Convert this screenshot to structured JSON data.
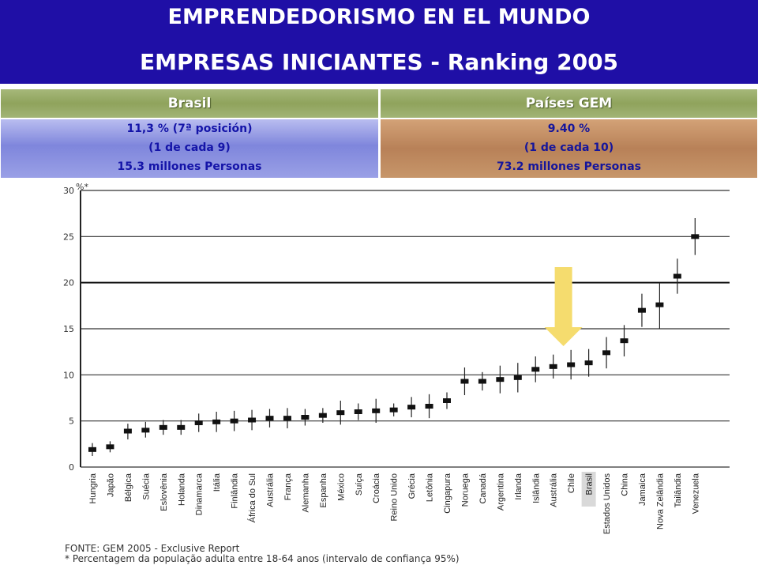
{
  "header": {
    "title_line1": "EMPRENDEDORISMO EN EL MUNDO",
    "title_line2": "EMPRESAS INICIANTES - Ranking 2005"
  },
  "table": {
    "col1_header": "Brasil",
    "col2_header": "Países GEM",
    "col1_lines": [
      "11,3 % (7ª posición)",
      "(1 de cada 9)",
      "15.3 millones Personas"
    ],
    "col2_lines": [
      "9.40 %",
      "(1 de cada 10)",
      "73.2 millones Personas"
    ]
  },
  "source": {
    "line1": "FONTE: GEM 2005 - Exclusive Report",
    "line2": "* Percentagem da população adulta entre 18-64 anos (intervalo de confiança 95%)"
  },
  "colors": {
    "header_bg": "#1f0fa6",
    "arrow": "#f5dc6e",
    "mark": "#111111"
  },
  "chart_data": {
    "type": "error-bar",
    "ylabel": "%*",
    "ylim": [
      0,
      30
    ],
    "yticks": [
      0,
      5,
      10,
      15,
      20,
      25,
      30
    ],
    "highlight": "Brasil",
    "categories": [
      "Hungria",
      "Japão",
      "Bélgica",
      "Suécia",
      "Eslovênia",
      "Holanda",
      "Dinamarca",
      "Itália",
      "Finlândia",
      "África do Sul",
      "Austrália",
      "França",
      "Alemanha",
      "Espanha",
      "México",
      "Suíça",
      "Croácia",
      "Reino Unido",
      "Grécia",
      "Letônia",
      "Cingapura",
      "Noruega",
      "Canadá",
      "Argentina",
      "Irlanda",
      "Islândia",
      "Austrália",
      "Chile",
      "Brasil",
      "Estados Unidos",
      "China",
      "Jamaica",
      "Nova Zelândia",
      "Tailândia",
      "Venezuela"
    ],
    "values": [
      1.9,
      2.2,
      3.9,
      4.0,
      4.3,
      4.3,
      4.8,
      4.9,
      5.0,
      5.1,
      5.3,
      5.3,
      5.4,
      5.6,
      5.9,
      6.0,
      6.1,
      6.2,
      6.5,
      6.6,
      7.2,
      9.3,
      9.3,
      9.5,
      9.7,
      10.6,
      10.9,
      11.1,
      11.3,
      12.4,
      13.7,
      17.0,
      17.6,
      20.7,
      25.0
    ],
    "ci_low": [
      1.2,
      1.6,
      3.0,
      3.2,
      3.5,
      3.5,
      3.8,
      3.8,
      3.9,
      4.0,
      4.3,
      4.2,
      4.5,
      4.8,
      4.6,
      5.1,
      4.8,
      5.5,
      5.4,
      5.3,
      6.3,
      7.8,
      8.3,
      8.0,
      8.1,
      9.2,
      9.6,
      9.5,
      9.8,
      10.7,
      12.0,
      15.2,
      15.0,
      18.8,
      23.0
    ],
    "ci_high": [
      2.6,
      2.8,
      4.7,
      4.9,
      5.1,
      5.1,
      5.8,
      6.0,
      6.1,
      6.2,
      6.3,
      6.4,
      6.3,
      6.4,
      7.2,
      6.9,
      7.4,
      6.9,
      7.6,
      7.9,
      8.1,
      10.8,
      10.3,
      11.0,
      11.3,
      12.0,
      12.2,
      12.7,
      12.8,
      14.1,
      15.4,
      18.8,
      20.0,
      22.6,
      27.0
    ]
  }
}
